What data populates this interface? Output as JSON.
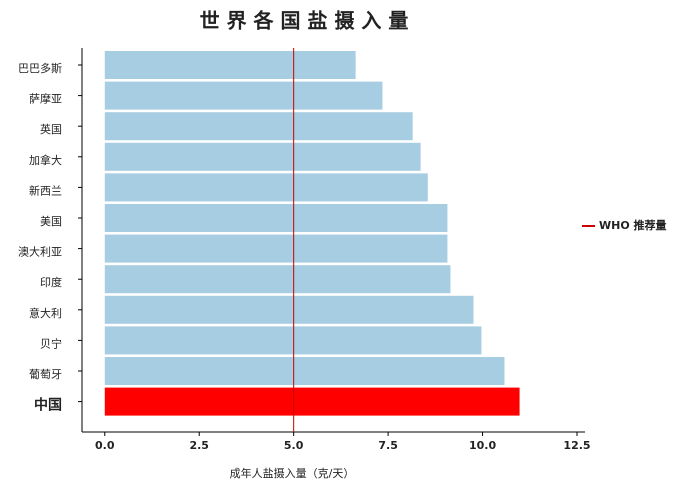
{
  "chart_data": {
    "type": "barh",
    "title": "世 界 各 国 盐 摄 入 量",
    "xlabel": "成年人盐摄入量（克/天）",
    "categories": [
      "巴巴多斯",
      "萨摩亚",
      "英国",
      "加拿大",
      "新西兰",
      "美国",
      "澳大利亚",
      "印度",
      "意大利",
      "贝宁",
      "葡萄牙",
      "中国"
    ],
    "values": [
      6.64,
      7.35,
      8.15,
      8.36,
      8.55,
      9.07,
      9.07,
      9.15,
      9.76,
      9.97,
      10.58,
      10.98
    ],
    "colors": [
      "#a6cde1",
      "#a6cde1",
      "#a6cde1",
      "#a6cde1",
      "#a6cde1",
      "#a6cde1",
      "#a6cde1",
      "#a6cde1",
      "#a6cde1",
      "#a6cde1",
      "#a6cde1",
      "#ff0000"
    ],
    "xlim": [
      -0.1,
      12.5
    ],
    "xticks": [
      {
        "value": 0,
        "label": "0.0"
      },
      {
        "value": 2.5,
        "label": "2.5"
      },
      {
        "value": 5,
        "label": "5.0"
      },
      {
        "value": 7.5,
        "label": "7.5"
      },
      {
        "value": 10,
        "label": "10.0"
      },
      {
        "value": 12.5,
        "label": "12.5"
      }
    ],
    "reference_line": {
      "value": 5,
      "label": "WHO 推荐量",
      "color": "#cc0000"
    },
    "legend": "right"
  }
}
